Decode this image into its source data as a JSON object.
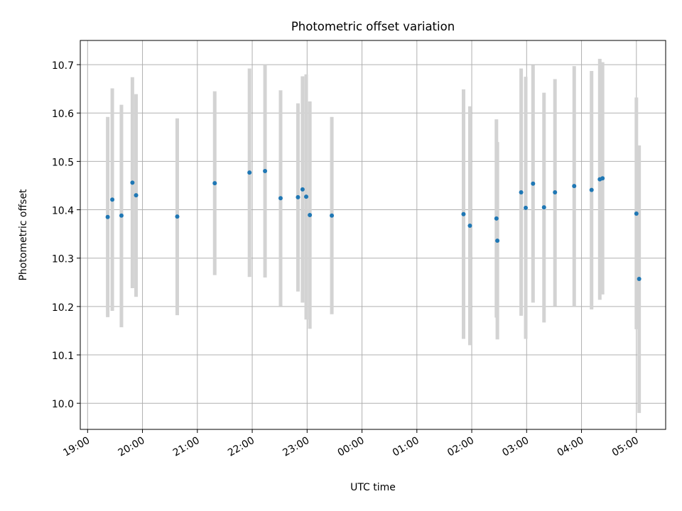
{
  "chart_data": {
    "type": "scatter",
    "title": "Photometric offset variation",
    "xlabel": "UTC time",
    "ylabel": "Photometric offset",
    "x_ticks": [
      "19:00",
      "20:00",
      "21:00",
      "22:00",
      "23:00",
      "00:00",
      "01:00",
      "02:00",
      "03:00",
      "04:00",
      "05:00"
    ],
    "x_tick_dates": [
      "2000-01-01 19:00",
      "2000-01-01 20:00",
      "2000-01-01 21:00",
      "2000-01-01 22:00",
      "2000-01-01 23:00",
      "2000-01-02 00:00",
      "2000-01-02 01:00",
      "2000-01-02 02:00",
      "2000-01-02 03:00",
      "2000-01-02 04:00",
      "2000-01-02 05:00"
    ],
    "xlim": [
      "2000-01-01 18:52",
      "2000-01-02 05:32"
    ],
    "y_ticks": [
      "10.0",
      "10.1",
      "10.2",
      "10.3",
      "10.4",
      "10.5",
      "10.6",
      "10.7"
    ],
    "ylim": [
      9.946,
      10.75
    ],
    "grid": true,
    "marker_color": "#1f77b4",
    "errorbar_color": "#d3d3d3",
    "points": [
      {
        "t": "2000-01-01 19:22",
        "y": 10.385,
        "lo": 10.178,
        "hi": 10.592
      },
      {
        "t": "2000-01-01 19:27",
        "y": 10.421,
        "lo": 10.191,
        "hi": 10.651
      },
      {
        "t": "2000-01-01 19:37",
        "y": 10.388,
        "lo": 10.157,
        "hi": 10.617
      },
      {
        "t": "2000-01-01 19:49",
        "y": 10.456,
        "lo": 10.238,
        "hi": 10.674
      },
      {
        "t": "2000-01-01 19:53",
        "y": 10.43,
        "lo": 10.22,
        "hi": 10.639
      },
      {
        "t": "2000-01-01 20:38",
        "y": 10.386,
        "lo": 10.182,
        "hi": 10.589
      },
      {
        "t": "2000-01-01 21:19",
        "y": 10.455,
        "lo": 10.265,
        "hi": 10.645
      },
      {
        "t": "2000-01-01 21:57",
        "y": 10.477,
        "lo": 10.261,
        "hi": 10.692
      },
      {
        "t": "2000-01-01 22:14",
        "y": 10.48,
        "lo": 10.26,
        "hi": 10.7
      },
      {
        "t": "2000-01-01 22:31",
        "y": 10.424,
        "lo": 10.201,
        "hi": 10.647
      },
      {
        "t": "2000-01-01 22:50",
        "y": 10.426,
        "lo": 10.231,
        "hi": 10.62
      },
      {
        "t": "2000-01-01 22:55",
        "y": 10.442,
        "lo": 10.208,
        "hi": 10.676
      },
      {
        "t": "2000-01-01 22:59",
        "y": 10.427,
        "lo": 10.173,
        "hi": 10.68
      },
      {
        "t": "2000-01-01 23:03",
        "y": 10.389,
        "lo": 10.154,
        "hi": 10.624
      },
      {
        "t": "2000-01-01 23:27",
        "y": 10.388,
        "lo": 10.184,
        "hi": 10.592
      },
      {
        "t": "2000-01-02 01:51",
        "y": 10.391,
        "lo": 10.133,
        "hi": 10.649
      },
      {
        "t": "2000-01-02 01:58",
        "y": 10.367,
        "lo": 10.12,
        "hi": 10.614
      },
      {
        "t": "2000-01-02 02:27",
        "y": 10.382,
        "lo": 10.177,
        "hi": 10.587
      },
      {
        "t": "2000-01-02 02:28",
        "y": 10.336,
        "lo": 10.132,
        "hi": 10.54
      },
      {
        "t": "2000-01-02 02:54",
        "y": 10.436,
        "lo": 10.181,
        "hi": 10.692
      },
      {
        "t": "2000-01-02 02:59",
        "y": 10.404,
        "lo": 10.133,
        "hi": 10.675
      },
      {
        "t": "2000-01-02 03:07",
        "y": 10.454,
        "lo": 10.208,
        "hi": 10.699
      },
      {
        "t": "2000-01-02 03:19",
        "y": 10.405,
        "lo": 10.167,
        "hi": 10.642
      },
      {
        "t": "2000-01-02 03:31",
        "y": 10.436,
        "lo": 10.201,
        "hi": 10.67
      },
      {
        "t": "2000-01-02 03:52",
        "y": 10.449,
        "lo": 10.2,
        "hi": 10.697
      },
      {
        "t": "2000-01-02 04:11",
        "y": 10.441,
        "lo": 10.194,
        "hi": 10.687
      },
      {
        "t": "2000-01-02 04:20",
        "y": 10.463,
        "lo": 10.214,
        "hi": 10.712
      },
      {
        "t": "2000-01-02 04:23",
        "y": 10.465,
        "lo": 10.225,
        "hi": 10.705
      },
      {
        "t": "2000-01-02 05:00",
        "y": 10.392,
        "lo": 10.153,
        "hi": 10.632
      },
      {
        "t": "2000-01-02 05:03",
        "y": 10.257,
        "lo": 9.98,
        "hi": 10.533
      }
    ]
  }
}
